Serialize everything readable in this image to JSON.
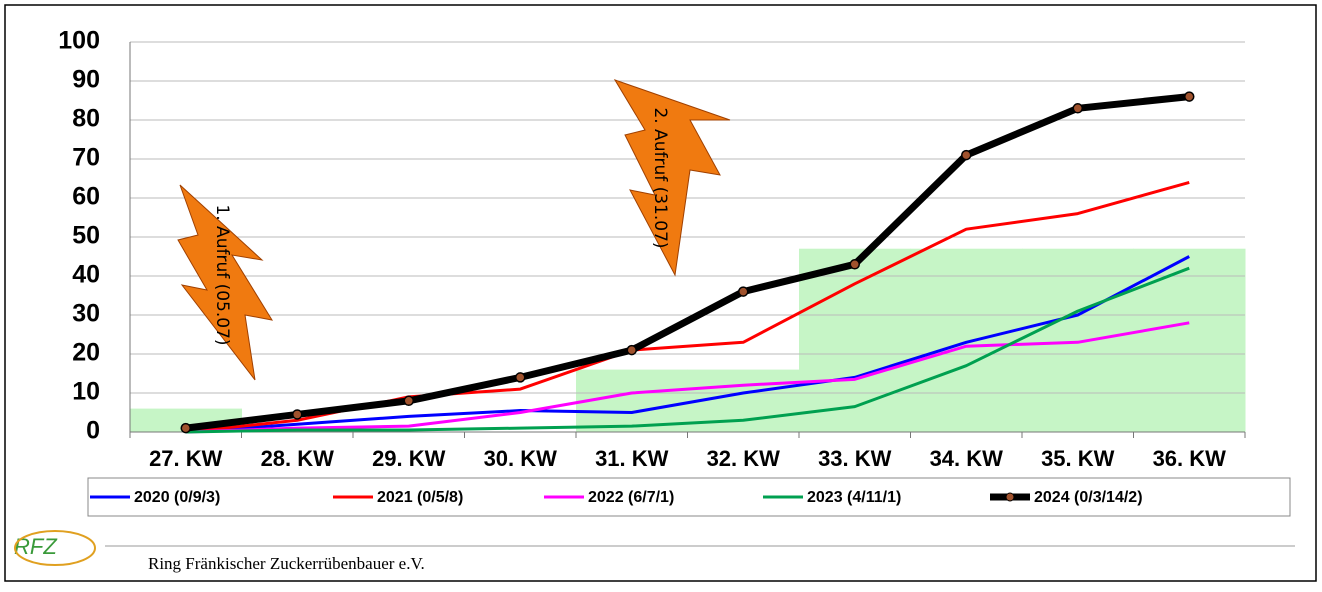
{
  "chart_data": {
    "type": "line",
    "categories": [
      "27. KW",
      "28. KW",
      "29. KW",
      "30. KW",
      "31. KW",
      "32. KW",
      "33. KW",
      "34. KW",
      "35. KW",
      "36. KW"
    ],
    "series": [
      {
        "name": "2020 (0/9/3)",
        "color": "#0000ff",
        "values": [
          0,
          2,
          4,
          5.5,
          5,
          10,
          14,
          23,
          30,
          45
        ]
      },
      {
        "name": "2021 (0/5/8)",
        "color": "#ff0000",
        "values": [
          0,
          3,
          9,
          11,
          21,
          23,
          38,
          52,
          56,
          64
        ]
      },
      {
        "name": "2022 (6/7/1)",
        "color": "#ff00ff",
        "values": [
          0,
          1,
          1.5,
          5,
          10,
          12,
          13.5,
          22,
          23,
          28
        ]
      },
      {
        "name": "2023 (4/11/1)",
        "color": "#00a050",
        "values": [
          0,
          0.5,
          0.5,
          1,
          1.5,
          3,
          6.5,
          17,
          31,
          42
        ]
      },
      {
        "name": "2024 (0/3/14/2)",
        "color": "#000000",
        "values": [
          1,
          4.5,
          8,
          14,
          21,
          36,
          43,
          71,
          83,
          86
        ]
      }
    ],
    "highlight": {
      "color": "#c6f5c6",
      "values": [
        6,
        null,
        null,
        null,
        16,
        16,
        47,
        47,
        47,
        47
      ]
    },
    "ylim": [
      0,
      100
    ],
    "yticks": [
      0,
      10,
      20,
      30,
      40,
      50,
      60,
      70,
      80,
      90,
      100
    ],
    "grid": true,
    "annotations": [
      "1. Aufruf (05.07)",
      "2. Aufruf (31.07)"
    ]
  },
  "footer": {
    "logo": "RFZ",
    "text": "Ring Fränkischer Zuckerrübenbauer e.V."
  }
}
